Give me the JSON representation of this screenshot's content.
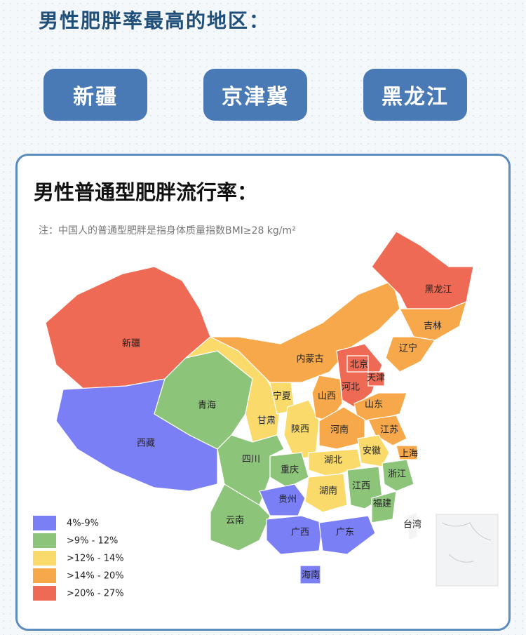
{
  "header": {
    "title": "男性肥胖率最高的地区："
  },
  "buttons": [
    "新疆",
    "京津冀",
    "黑龙江"
  ],
  "card": {
    "title": "男性普通型肥胖流行率：",
    "note": "注：中国人的普通型肥胖是指身体质量指数BMI≥28 kg/m²"
  },
  "legend": [
    {
      "label": "4%-9%",
      "color": "#7b7ff5"
    },
    {
      "label": ">9% - 12%",
      "color": "#8cc47a"
    },
    {
      "label": ">12% - 14%",
      "color": "#f9da6b"
    },
    {
      "label": ">14% - 20%",
      "color": "#f7a84a"
    },
    {
      "label": ">20% - 27%",
      "color": "#ef6a55"
    }
  ],
  "provinces": [
    {
      "label": "新疆",
      "color": "#ef6a55"
    },
    {
      "label": "西藏",
      "color": "#7b7ff5"
    },
    {
      "label": "青海",
      "color": "#8cc47a"
    },
    {
      "label": "甘肃",
      "color": "#f9da6b"
    },
    {
      "label": "宁夏",
      "color": "#f9da6b"
    },
    {
      "label": "陕西",
      "color": "#f9da6b"
    },
    {
      "label": "内蒙古",
      "color": "#f7a84a"
    },
    {
      "label": "黑龙江",
      "color": "#ef6a55"
    },
    {
      "label": "吉林",
      "color": "#f7a84a"
    },
    {
      "label": "辽宁",
      "color": "#f7a84a"
    },
    {
      "label": "河北",
      "color": "#ef6a55"
    },
    {
      "label": "北京",
      "color": "#ef6a55"
    },
    {
      "label": "天津",
      "color": "#ef6a55"
    },
    {
      "label": "山西",
      "color": "#f7a84a"
    },
    {
      "label": "山东",
      "color": "#f7a84a"
    },
    {
      "label": "河南",
      "color": "#f7a84a"
    },
    {
      "label": "江苏",
      "color": "#f7a84a"
    },
    {
      "label": "安徽",
      "color": "#f9da6b"
    },
    {
      "label": "上海",
      "color": "#f7a84a"
    },
    {
      "label": "湖北",
      "color": "#f9da6b"
    },
    {
      "label": "重庆",
      "color": "#8cc47a"
    },
    {
      "label": "四川",
      "color": "#8cc47a"
    },
    {
      "label": "湖南",
      "color": "#f9da6b"
    },
    {
      "label": "江西",
      "color": "#8cc47a"
    },
    {
      "label": "浙江",
      "color": "#8cc47a"
    },
    {
      "label": "福建",
      "color": "#8cc47a"
    },
    {
      "label": "贵州",
      "color": "#7b7ff5"
    },
    {
      "label": "云南",
      "color": "#8cc47a"
    },
    {
      "label": "广西",
      "color": "#7b7ff5"
    },
    {
      "label": "广东",
      "color": "#7b7ff5"
    },
    {
      "label": "海南",
      "color": "#7b7ff5"
    },
    {
      "label": "台湾",
      "color": "#f4f4f4"
    }
  ]
}
